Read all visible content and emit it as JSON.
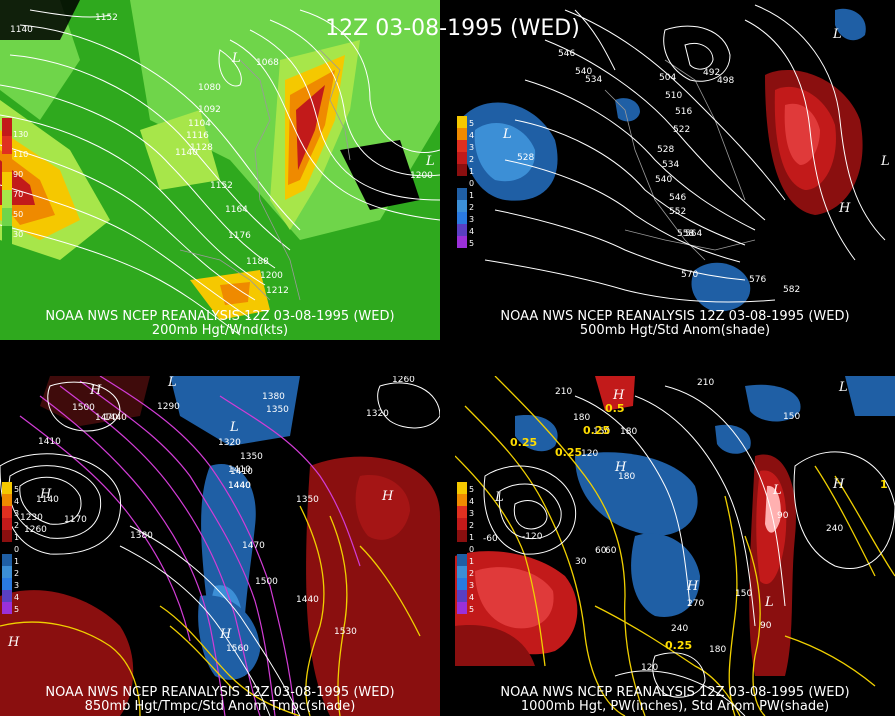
{
  "title": "12Z 03-08-1995 (WED)",
  "panels": [
    {
      "caption_line1": "NOAA NWS NCEP REANALYSIS 12Z 03-08-1995 (WED)",
      "caption_line2": "200mb Hgt/Wnd(kts)",
      "legend": [
        "130",
        "110",
        "90",
        "70",
        "50",
        "30"
      ],
      "contour_labels": [
        "1152",
        "1140",
        "1068",
        "1080",
        "1092",
        "1104",
        "1116",
        "1128",
        "1140",
        "1152",
        "1164",
        "1176",
        "1188",
        "1200",
        "1212",
        "1200"
      ]
    },
    {
      "caption_line1": "NOAA NWS NCEP REANALYSIS 12Z 03-08-1995 (WED)",
      "caption_line2": "500mb Hgt/Std Anom(shade)",
      "legend": [
        "5",
        "4",
        "3",
        "2",
        "1",
        "0",
        "1",
        "2",
        "3",
        "4",
        "5"
      ],
      "contour_labels": [
        "546",
        "540",
        "534",
        "504",
        "492",
        "498",
        "510",
        "516",
        "522",
        "528",
        "534",
        "540",
        "546",
        "552",
        "558",
        "564",
        "528",
        "570",
        "576",
        "582"
      ]
    },
    {
      "caption_line1": "NOAA NWS NCEP REANALYSIS 12Z 03-08-1995 (WED)",
      "caption_line2": "850mb Hgt/Tmpc/Std Anom Tmpc(shade)",
      "legend": [
        "5",
        "4",
        "3",
        "2",
        "1",
        "0",
        "1",
        "2",
        "3",
        "4",
        "5"
      ],
      "contour_labels": [
        "1500",
        "1470",
        "1440",
        "1290",
        "1410",
        "1380",
        "1350",
        "1320",
        "1350",
        "1410",
        "1440",
        "1470",
        "1500",
        "1140",
        "1170",
        "1230",
        "1260",
        "1380",
        "1350",
        "1440",
        "1530",
        "1560",
        "1410",
        "1440",
        "1260",
        "1320"
      ]
    },
    {
      "caption_line1": "NOAA NWS NCEP REANALYSIS 12Z 03-08-1995 (WED)",
      "caption_line2": "1000mb Hgt, PW(inches), Std Anom PW(shade)",
      "legend": [
        "5",
        "4",
        "3",
        "2",
        "1",
        "0",
        "1",
        "2",
        "3",
        "4",
        "5"
      ],
      "contour_labels": [
        "210",
        "180",
        "150",
        "120",
        "210",
        "180",
        "0.25",
        "0.25",
        "0.25",
        "0.5",
        "180",
        "240",
        "150",
        "90",
        "30",
        "60",
        "60",
        "-60",
        "-120",
        "270",
        "240",
        "180",
        "150",
        "120",
        "0.25",
        "90",
        "1"
      ]
    }
  ]
}
